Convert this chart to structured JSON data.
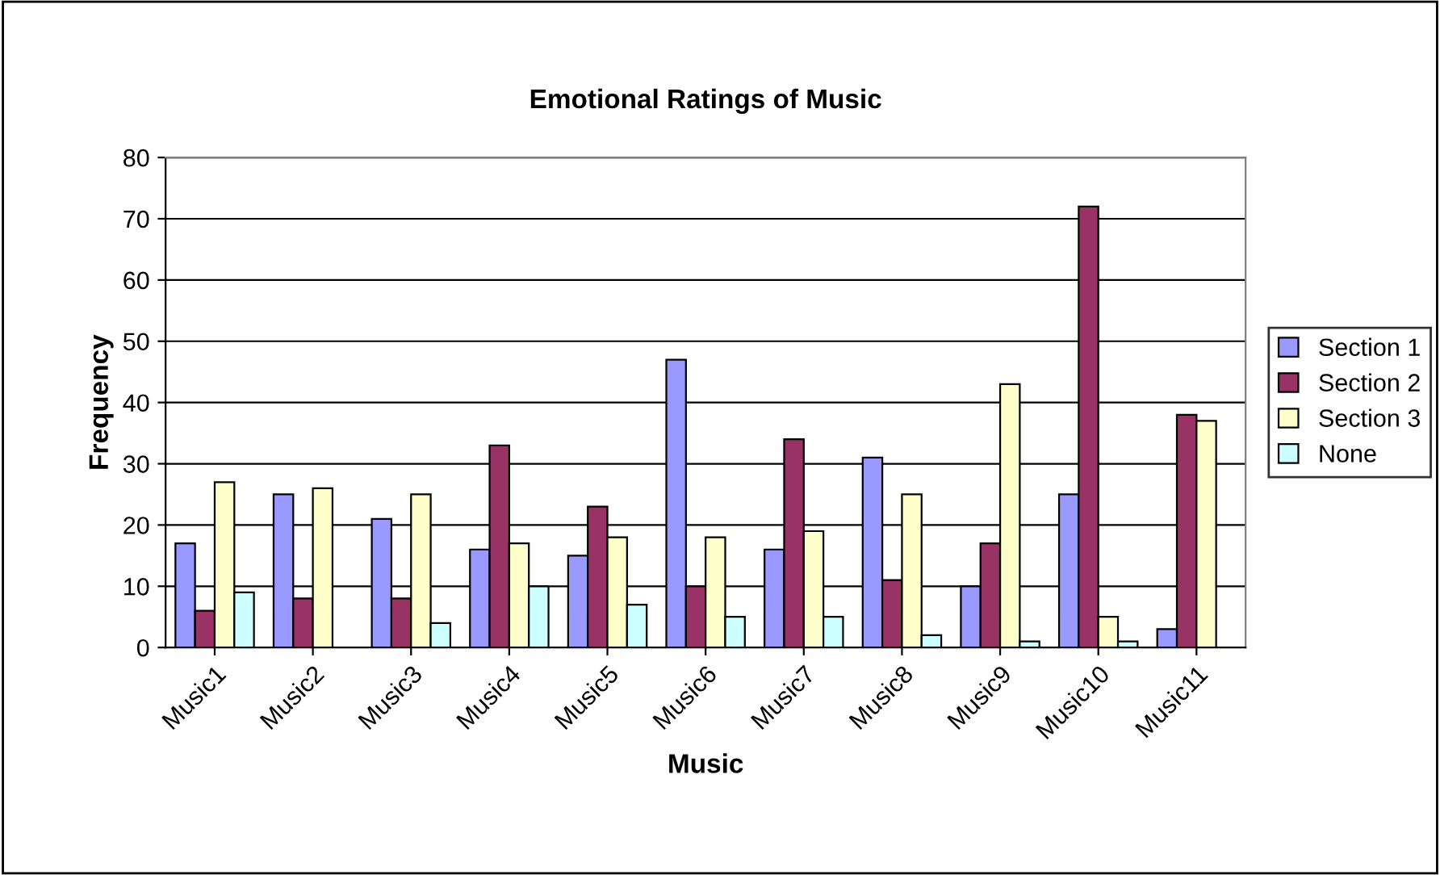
{
  "chart_data": {
    "type": "bar",
    "title": "Emotional Ratings of Music",
    "xlabel": "Music",
    "ylabel": "Frequency",
    "categories": [
      "Music1",
      "Music2",
      "Music3",
      "Music4",
      "Music5",
      "Music6",
      "Music7",
      "Music8",
      "Music9",
      "Music10",
      "Music11"
    ],
    "series": [
      {
        "name": "Section 1",
        "color": "#9999ff",
        "values": [
          17,
          25,
          21,
          16,
          15,
          47,
          16,
          31,
          10,
          25,
          3
        ]
      },
      {
        "name": "Section 2",
        "color": "#993366",
        "values": [
          6,
          8,
          8,
          33,
          23,
          10,
          34,
          11,
          17,
          72,
          38
        ]
      },
      {
        "name": "Section 3",
        "color": "#ffffcc",
        "values": [
          27,
          26,
          25,
          17,
          18,
          18,
          19,
          25,
          43,
          5,
          37
        ]
      },
      {
        "name": "None",
        "color": "#ccffff",
        "values": [
          9,
          null,
          4,
          10,
          7,
          5,
          5,
          2,
          1,
          1,
          null
        ]
      }
    ],
    "ylim": [
      0,
      80
    ],
    "yticks": [
      0,
      10,
      20,
      30,
      40,
      50,
      60,
      70,
      80
    ],
    "grid": "y",
    "legend": "right"
  }
}
